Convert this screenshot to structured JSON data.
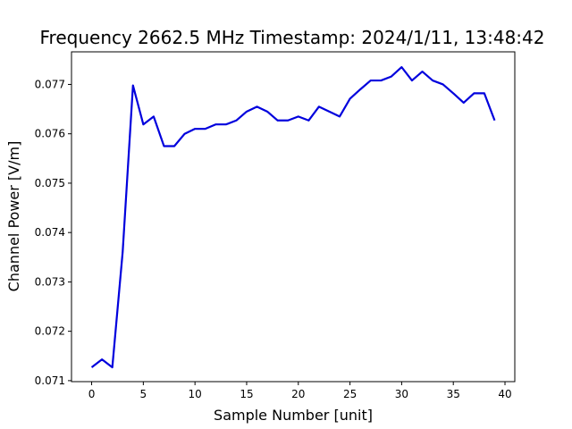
{
  "chart_data": {
    "type": "line",
    "title": "Frequency 2662.5 MHz Timestamp: 2024/1/11, 13:48:42",
    "xlabel": "Sample Number [unit]",
    "ylabel": "Channel Power [V/m]",
    "xlim": [
      -1.95,
      40.95
    ],
    "ylim": [
      0.07098,
      0.07766
    ],
    "xticks": [
      0,
      5,
      10,
      15,
      20,
      25,
      30,
      35,
      40
    ],
    "xtick_labels": [
      "0",
      "5",
      "10",
      "15",
      "20",
      "25",
      "30",
      "35",
      "40"
    ],
    "yticks": [
      0.071,
      0.072,
      0.073,
      0.074,
      0.075,
      0.076,
      0.077
    ],
    "ytick_labels": [
      "0.071",
      "0.072",
      "0.073",
      "0.074",
      "0.075",
      "0.076",
      "0.077"
    ],
    "grid": false,
    "series": [
      {
        "color": "#0000dd",
        "x": [
          0,
          1,
          2,
          3,
          4,
          5,
          6,
          7,
          8,
          9,
          10,
          11,
          12,
          13,
          14,
          15,
          16,
          17,
          18,
          19,
          20,
          21,
          22,
          23,
          24,
          25,
          26,
          27,
          28,
          29,
          30,
          31,
          32,
          33,
          34,
          35,
          36,
          37,
          38,
          39
        ],
        "y": [
          0.07127,
          0.07143,
          0.07127,
          0.0736,
          0.07698,
          0.07619,
          0.07635,
          0.07575,
          0.07575,
          0.076,
          0.0761,
          0.0761,
          0.07619,
          0.07619,
          0.07627,
          0.07645,
          0.07655,
          0.07645,
          0.07627,
          0.07627,
          0.07635,
          0.07627,
          0.07655,
          0.07645,
          0.07635,
          0.07671,
          0.0769,
          0.07708,
          0.07708,
          0.07716,
          0.07735,
          0.07708,
          0.07726,
          0.07708,
          0.077,
          0.07682,
          0.07663,
          0.07682,
          0.07682,
          0.07627
        ]
      }
    ]
  }
}
